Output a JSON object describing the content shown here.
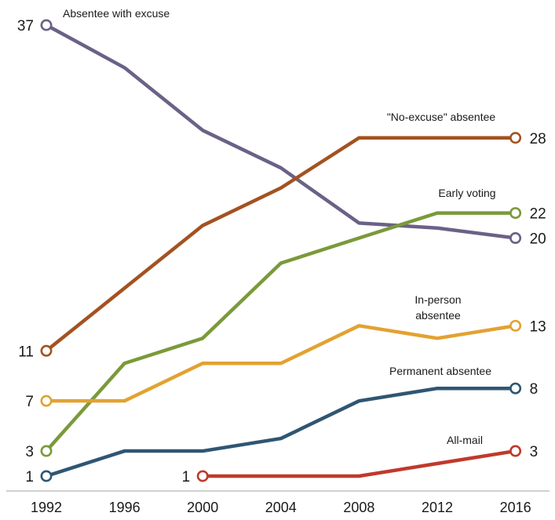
{
  "chart_data": {
    "type": "line",
    "x": [
      "1992",
      "1996",
      "2000",
      "2004",
      "2008",
      "2012",
      "2016"
    ],
    "ylim": [
      1,
      37
    ],
    "grid": false,
    "legend": "none",
    "series": [
      {
        "name": "Absentee with excuse",
        "color": "#6b6187",
        "values": [
          37,
          33.6,
          28.6,
          25.6,
          21.2,
          20.8,
          20
        ],
        "start_label": "37",
        "end_label": "20"
      },
      {
        "name": "\"No-excuse\" absentee",
        "color": "#a35220",
        "values": [
          11,
          16,
          21,
          24,
          28,
          28,
          28
        ],
        "start_label": "11",
        "end_label": "28"
      },
      {
        "name": "Early voting",
        "color": "#7a9a3a",
        "values": [
          3,
          10,
          12,
          18,
          20,
          22,
          22
        ],
        "start_label": "3",
        "end_label": "22"
      },
      {
        "name": "In-person absentee",
        "name_lines": [
          "In-person",
          "absentee"
        ],
        "color": "#e2a232",
        "values": [
          7,
          7,
          10,
          10,
          13,
          12,
          13
        ],
        "start_label": "7",
        "end_label": "13"
      },
      {
        "name": "Permanent absentee",
        "color": "#2f5673",
        "values": [
          1,
          3,
          3,
          4,
          7,
          8,
          8
        ],
        "start_label": "1",
        "end_label": "8"
      },
      {
        "name": "All-mail",
        "color": "#c0392b",
        "x_start": "2000",
        "values": [
          null,
          null,
          1,
          1,
          1,
          2,
          3
        ],
        "start_label": "1",
        "end_label": "3"
      }
    ]
  }
}
